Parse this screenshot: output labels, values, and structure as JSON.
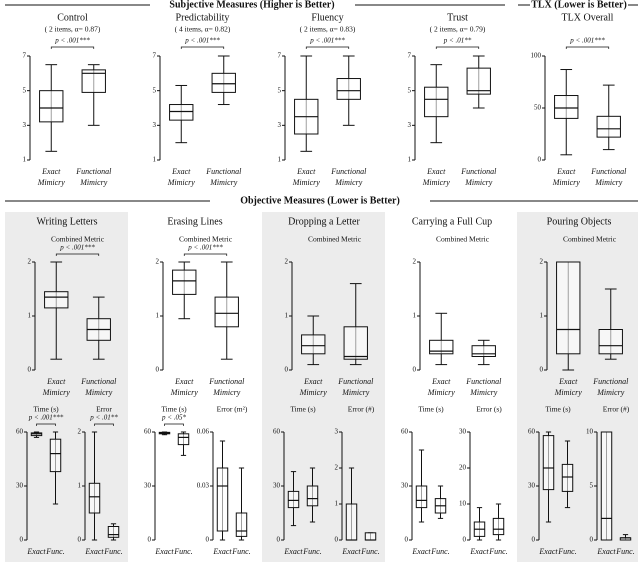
{
  "sections": {
    "subjective": "Subjective Measures (Higher is Better)",
    "tlx": "TLX (Lower is Better)",
    "objective": "Objective Measures (Lower is Better)"
  },
  "tasks": [
    "Writing Letters",
    "Erasing Lines",
    "Dropping a Letter",
    "Carrying a Full Cup",
    "Pouring Objects"
  ],
  "chart_data": [
    {
      "type": "box",
      "title": "Control",
      "subtitle": "( 2 items, α= 0.87)",
      "annotation": "p < .001***",
      "categories": [
        "Exact Mimicry",
        "Functional Mimicry"
      ],
      "stats": [
        [
          1.5,
          3.2,
          4,
          5,
          6.5
        ],
        [
          3,
          4.9,
          6,
          6.2,
          6.5
        ]
      ],
      "ylim": [
        1,
        7
      ],
      "yticks": [
        1,
        3,
        5,
        7
      ]
    },
    {
      "type": "box",
      "title": "Predictability",
      "subtitle": "( 4 items, α= 0.82)",
      "annotation": "p < .001***",
      "categories": [
        "Exact Mimicry",
        "Functional Mimicry"
      ],
      "stats": [
        [
          2,
          3.3,
          3.8,
          4.2,
          5.3
        ],
        [
          4.2,
          4.9,
          5.4,
          6,
          7
        ]
      ],
      "ylim": [
        1,
        7
      ],
      "yticks": [
        1,
        3,
        5,
        7
      ]
    },
    {
      "type": "box",
      "title": "Fluency",
      "subtitle": "( 2 items, α= 0.83)",
      "annotation": "p < .001***",
      "categories": [
        "Exact Mimicry",
        "Functional Mimicry"
      ],
      "stats": [
        [
          1.5,
          2.5,
          3.5,
          4.5,
          7
        ],
        [
          3,
          4.5,
          5,
          5.7,
          7
        ]
      ],
      "ylim": [
        1,
        7
      ],
      "yticks": [
        1,
        3,
        5,
        7
      ]
    },
    {
      "type": "box",
      "title": "Trust",
      "subtitle": "( 2 items, α= 0.79)",
      "annotation": "p < .01**",
      "categories": [
        "Exact Mimicry",
        "Functional Mimicry"
      ],
      "stats": [
        [
          2,
          3.5,
          4.5,
          5.2,
          6.5
        ],
        [
          4,
          4.8,
          5,
          6.3,
          7
        ]
      ],
      "ylim": [
        1,
        7
      ],
      "yticks": [
        1,
        3,
        5,
        7
      ]
    },
    {
      "type": "box",
      "title": "TLX Overall",
      "annotation": "p < .001***",
      "categories": [
        "Exact Mimicry",
        "Functional Mimicry"
      ],
      "stats": [
        [
          5,
          40,
          50,
          62,
          87
        ],
        [
          10,
          22,
          30,
          42,
          72
        ]
      ],
      "ylim": [
        0,
        100
      ],
      "yticks": [
        0,
        50,
        100
      ]
    },
    {
      "type": "box",
      "title": "Combined Metric",
      "annotation": "p < .001***",
      "categories": [
        "Exact Mimicry",
        "Functional Mimicry"
      ],
      "stats": [
        [
          0.2,
          1.15,
          1.35,
          1.45,
          2
        ],
        [
          0.2,
          0.55,
          0.75,
          0.95,
          1.35
        ]
      ],
      "ylim": [
        0,
        2
      ],
      "yticks": [
        0,
        1,
        2
      ]
    },
    {
      "type": "box",
      "title": "Time (s)",
      "annotation": "p < .001***",
      "categories": [
        "Exact",
        "Func."
      ],
      "stats": [
        [
          57,
          58,
          59,
          59.5,
          60
        ],
        [
          20,
          38,
          48,
          56,
          60
        ]
      ],
      "ylim": [
        0,
        60
      ],
      "yticks": [
        0,
        30,
        60
      ]
    },
    {
      "type": "box",
      "title": "Error",
      "annotation": "p < .01**",
      "categories": [
        "Exact",
        "Func."
      ],
      "stats": [
        [
          0,
          0.5,
          0.8,
          1.05,
          2
        ],
        [
          0,
          0.05,
          0.1,
          0.25,
          0.3
        ]
      ],
      "ylim": [
        0,
        2
      ],
      "yticks": [
        0,
        1,
        2
      ]
    },
    {
      "type": "box",
      "title": "Combined Metric",
      "annotation": "p < .001***",
      "categories": [
        "Exact Mimicry",
        "Functional Mimicry"
      ],
      "stats": [
        [
          0.95,
          1.4,
          1.65,
          1.85,
          2
        ],
        [
          0.2,
          0.8,
          1.05,
          1.35,
          2
        ]
      ],
      "ylim": [
        0,
        2
      ],
      "yticks": [
        0,
        1,
        2
      ]
    },
    {
      "type": "box",
      "title": "Time (s)",
      "annotation": "p < .05*",
      "categories": [
        "Exact",
        "Func."
      ],
      "stats": [
        [
          58.5,
          59,
          59.5,
          59.8,
          60
        ],
        [
          47,
          53,
          57,
          59,
          60
        ]
      ],
      "ylim": [
        0,
        60
      ],
      "yticks": [
        0,
        30,
        60
      ]
    },
    {
      "type": "box",
      "title": "Error (m²)",
      "categories": [
        "Exact",
        "Func."
      ],
      "stats": [
        [
          0,
          0.005,
          0.03,
          0.04,
          0.055
        ],
        [
          0,
          0.002,
          0.005,
          0.015,
          0.04
        ]
      ],
      "ylim": [
        0,
        0.06
      ],
      "yticks": [
        0,
        0.03,
        0.06
      ]
    },
    {
      "type": "box",
      "title": "Combined Metric",
      "categories": [
        "Exact Mimicry",
        "Functional Mimicry"
      ],
      "stats": [
        [
          0.1,
          0.3,
          0.45,
          0.65,
          1
        ],
        [
          0.1,
          0.2,
          0.25,
          0.8,
          1.6
        ]
      ],
      "ylim": [
        0,
        2
      ],
      "yticks": [
        0,
        1,
        2
      ]
    },
    {
      "type": "box",
      "title": "Time (s)",
      "categories": [
        "Exact",
        "Func."
      ],
      "stats": [
        [
          8,
          18,
          22,
          27,
          38
        ],
        [
          10,
          19,
          23,
          30,
          40
        ]
      ],
      "ylim": [
        0,
        60
      ],
      "yticks": [
        0,
        30,
        60
      ]
    },
    {
      "type": "box",
      "title": "Error (#)",
      "categories": [
        "Exact",
        "Func."
      ],
      "stats": [
        [
          0,
          0,
          0,
          1,
          2
        ],
        [
          0,
          0,
          0,
          0.2,
          0.2
        ]
      ],
      "ylim": [
        0,
        3
      ],
      "yticks": [
        0,
        1,
        2,
        3
      ]
    },
    {
      "type": "box",
      "title": "Combined Metric",
      "categories": [
        "Exact Mimicry",
        "Functional Mimicry"
      ],
      "stats": [
        [
          0.1,
          0.3,
          0.35,
          0.55,
          1.05
        ],
        [
          0.1,
          0.25,
          0.3,
          0.45,
          0.55
        ]
      ],
      "ylim": [
        0,
        2
      ],
      "yticks": [
        0,
        1,
        2
      ]
    },
    {
      "type": "box",
      "title": "Time (s)",
      "categories": [
        "Exact",
        "Func."
      ],
      "stats": [
        [
          10,
          18,
          22,
          30,
          50
        ],
        [
          12,
          15,
          19,
          23,
          30
        ]
      ],
      "ylim": [
        0,
        60
      ],
      "yticks": [
        0,
        30,
        60
      ]
    },
    {
      "type": "box",
      "title": "Error (s)",
      "categories": [
        "Exact",
        "Func."
      ],
      "stats": [
        [
          0,
          1,
          3,
          5,
          9
        ],
        [
          0,
          1.5,
          3,
          6,
          10
        ]
      ],
      "ylim": [
        0,
        30
      ],
      "yticks": [
        0,
        10,
        20,
        30
      ]
    },
    {
      "type": "box",
      "title": "Combined Metric",
      "categories": [
        "Exact Mimicry",
        "Functional Mimicry"
      ],
      "stats": [
        [
          0,
          0.3,
          0.75,
          2,
          2
        ],
        [
          0.2,
          0.3,
          0.45,
          0.75,
          1.5
        ]
      ],
      "ylim": [
        0,
        2
      ],
      "yticks": [
        0,
        1,
        2
      ]
    },
    {
      "type": "box",
      "title": "Time (s)",
      "categories": [
        "Exact",
        "Func."
      ],
      "stats": [
        [
          10,
          28,
          40,
          58,
          60
        ],
        [
          18,
          27,
          35,
          42,
          55
        ]
      ],
      "ylim": [
        0,
        60
      ],
      "yticks": [
        0,
        30,
        60
      ]
    },
    {
      "type": "box",
      "title": "Error (#)",
      "categories": [
        "Exact",
        "Func."
      ],
      "stats": [
        [
          0,
          0,
          2,
          10,
          10
        ],
        [
          0,
          0,
          0.2,
          0.2,
          0.5
        ]
      ],
      "ylim": [
        0,
        10
      ],
      "yticks": [
        0,
        5,
        10
      ]
    }
  ]
}
